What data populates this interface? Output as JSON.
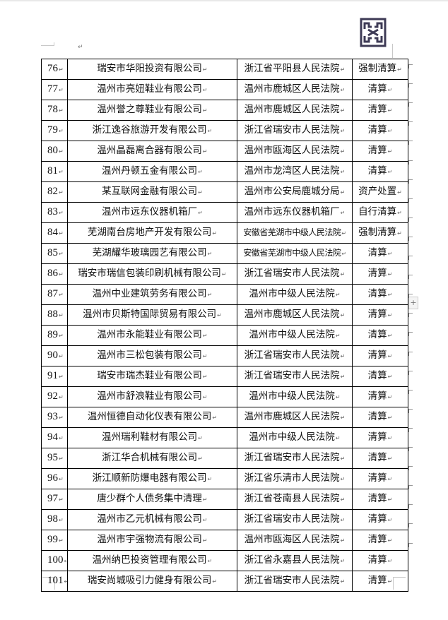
{
  "rows": [
    {
      "no": "76",
      "company": "瑞安市华阳投资有限公司",
      "court": "浙江省平阳县人民法院",
      "type": "强制清算"
    },
    {
      "no": "77",
      "company": "温州市亮妞鞋业有限公司",
      "court": "温州市鹿城区人民法院",
      "type": "清算"
    },
    {
      "no": "78",
      "company": "温州誉之尊鞋业有限公司",
      "court": "温州市鹿城区人民法院",
      "type": "清算"
    },
    {
      "no": "79",
      "company": "浙江逸谷旅游开发有限公司",
      "court": "浙江省瑞安市人民法院",
      "type": "清算"
    },
    {
      "no": "80",
      "company": "温州晶磊离合器有限公司",
      "court": "温州市瓯海区人民法院",
      "type": "清算"
    },
    {
      "no": "81",
      "company": "温州丹顿五金有限公司",
      "court": "温州市龙湾区人民法院",
      "type": "清算"
    },
    {
      "no": "82",
      "company": "某互联网金融有限公司",
      "court": "温州市公安局鹿城分局",
      "type": "资产处置"
    },
    {
      "no": "83",
      "company": "温州市远东仪器机箱厂",
      "court": "温州市远东仪器机箱厂",
      "type": "自行清算"
    },
    {
      "no": "84",
      "company": "芜湖南台房地产开发有限公司",
      "court": "安徽省芜湖市中级人民法院",
      "type": "强制清算"
    },
    {
      "no": "85",
      "company": "芜湖耀华玻璃园艺有限公司",
      "court": "安徽省芜湖市中级人民法院",
      "type": "清算"
    },
    {
      "no": "86",
      "company": "瑞安市瑞信包装印刷机械有限公司",
      "court": "浙江省瑞安市人民法院",
      "type": "清算"
    },
    {
      "no": "87",
      "company": "温州中业建筑劳务有限公司",
      "court": "温州市中级人民法院",
      "type": "清算"
    },
    {
      "no": "88",
      "company": "温州市贝斯特国际贸易有限公司",
      "court": "温州市鹿城区人民法院",
      "type": "清算"
    },
    {
      "no": "89",
      "company": "温州市永能鞋业有限公司",
      "court": "温州市中级人民法院",
      "type": "清算"
    },
    {
      "no": "90",
      "company": "温州市三松包装有限公司",
      "court": "浙江省瑞安市人民法院",
      "type": "清算"
    },
    {
      "no": "91",
      "company": "瑞安市瑞杰鞋业有限公司",
      "court": "浙江省瑞安市人民法院",
      "type": "清算"
    },
    {
      "no": "92",
      "company": "温州市舒浪鞋业有限公司",
      "court": "温州市中级人民法院",
      "type": "清算"
    },
    {
      "no": "93",
      "company": "温州恒德自动化仪表有限公司",
      "court": "温州市鹿城区人民法院",
      "type": "清算"
    },
    {
      "no": "94",
      "company": "温州瑞利鞋材有限公司",
      "court": "温州市中级人民法院",
      "type": "清算"
    },
    {
      "no": "95",
      "company": "浙江华合机械有限公司",
      "court": "浙江省瑞安市人民法院",
      "type": "清算"
    },
    {
      "no": "96",
      "company": "浙江顺新防爆电器有限公司",
      "court": "浙江省乐清市人民法院",
      "type": "清算"
    },
    {
      "no": "97",
      "company": "唐少群个人债务集中清理",
      "court": "浙江省苍南县人民法院",
      "type": "清算"
    },
    {
      "no": "98",
      "company": "温州市乙元机械有限公司",
      "court": "浙江省瑞安市人民法院",
      "type": "清算"
    },
    {
      "no": "99",
      "company": "温州市宇强物流有限公司",
      "court": "温州市瓯海区人民法院",
      "type": "清算"
    },
    {
      "no": "100",
      "company": "温州纳巴投资管理有限公司",
      "court": "浙江省永嘉县人民法院",
      "type": "清算"
    },
    {
      "no": "101",
      "company": "瑞安尚城吸引力健身有限公司",
      "court": "浙江省瑞安市人民法院",
      "type": "清算"
    }
  ],
  "icons": {
    "logo": "firm-logo-icon",
    "return_mark": "paragraph-mark-icon",
    "add": "plus-icon"
  },
  "colors": {
    "logo": "#3d3a55",
    "border": "#000000"
  }
}
